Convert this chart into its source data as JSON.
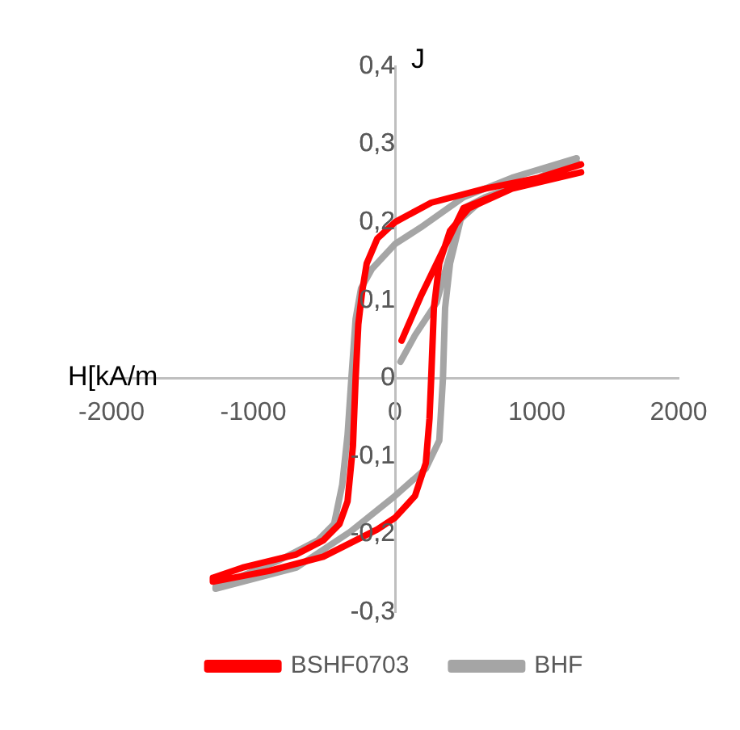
{
  "chart_data": {
    "type": "line",
    "xlabel": "H[kA/m",
    "ylabel": "J",
    "xlim": [
      -2000,
      2000
    ],
    "xticks": [
      -2000,
      -1000,
      0,
      1000,
      2000
    ],
    "ylim": [
      -0.3,
      0.4
    ],
    "yticks": [
      {
        "value": -0.3,
        "label": "-0,3"
      },
      {
        "value": -0.2,
        "label": "-0,2"
      },
      {
        "value": -0.1,
        "label": "-0,1"
      },
      0,
      {
        "value": 0.1,
        "label": "0,1"
      },
      {
        "value": 0.2,
        "label": "0,2"
      },
      {
        "value": 0.3,
        "label": "0,3"
      },
      {
        "value": 0.4,
        "label": "0,4"
      }
    ],
    "grid": false,
    "legend": "bottom",
    "marker": "none",
    "line_style": "solid",
    "series": [
      {
        "name": "BSHF0703",
        "color": "#ff0000",
        "x": [
          46,
          179,
          331,
          483,
          825,
          1015,
          1312,
          1015,
          635,
          255,
          0,
          -125,
          -200,
          -232,
          -259,
          -278,
          -297,
          -335,
          -392,
          -506,
          -696,
          -1076,
          -1285,
          -1285,
          -886,
          -506,
          -125,
          0,
          141,
          217,
          243,
          255,
          274,
          312,
          388,
          521,
          825,
          1312
        ],
        "values": [
          0.048,
          0.104,
          0.161,
          0.218,
          0.243,
          0.257,
          0.274,
          0.257,
          0.243,
          0.225,
          0.2,
          0.179,
          0.147,
          0.111,
          0.069,
          0,
          -0.087,
          -0.158,
          -0.187,
          -0.208,
          -0.226,
          -0.243,
          -0.256,
          -0.261,
          -0.247,
          -0.229,
          -0.194,
          -0.179,
          -0.151,
          -0.109,
          -0.052,
          0,
          0.09,
          0.147,
          0.189,
          0.218,
          0.243,
          0.264
        ]
      },
      {
        "name": "BHF",
        "color": "#a5a5a5",
        "x": [
          38,
          141,
          293,
          369,
          483,
          635,
          1015,
          1281,
          825,
          483,
          179,
          0,
          -163,
          -240,
          -278,
          -308,
          -335,
          -373,
          -430,
          -544,
          -810,
          -1266,
          -1266,
          -696,
          -316,
          0,
          217,
          312,
          338,
          353,
          388,
          464,
          635,
          1015,
          1281
        ],
        "values": [
          0.021,
          0.055,
          0.097,
          0.147,
          0.218,
          0.232,
          0.257,
          0.282,
          0.257,
          0.232,
          0.193,
          0.172,
          0.14,
          0.115,
          0.076,
          0,
          -0.073,
          -0.137,
          -0.187,
          -0.208,
          -0.233,
          -0.268,
          -0.27,
          -0.243,
          -0.197,
          -0.151,
          -0.116,
          -0.08,
          0,
          0.09,
          0.147,
          0.204,
          0.232,
          0.257,
          0.278
        ]
      }
    ]
  }
}
